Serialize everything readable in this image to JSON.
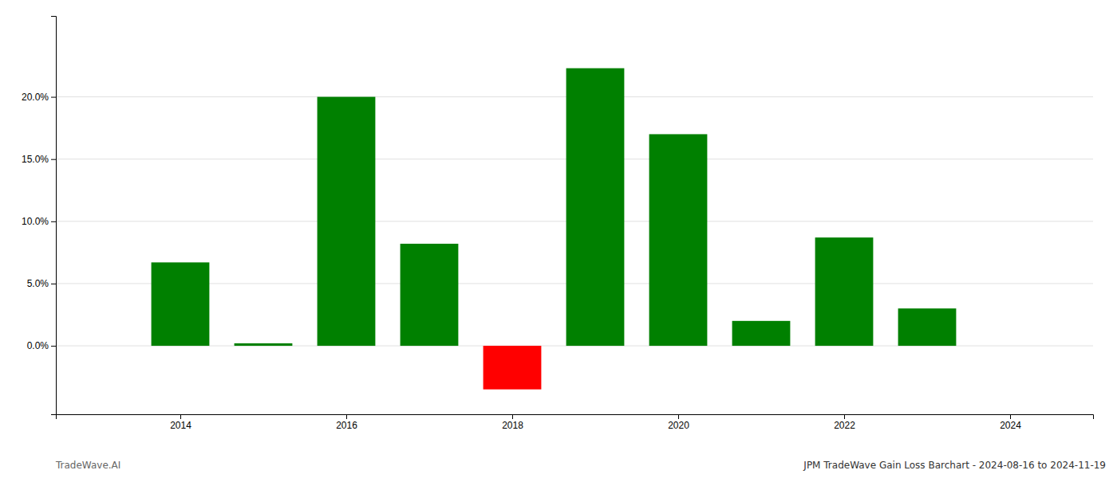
{
  "chart_data": {
    "type": "bar",
    "title": "JPM TradeWave Gain Loss Barchart - 2024-08-16 to 2024-11-19",
    "annotations": [
      "TradeWave.AI"
    ],
    "x": [
      2014,
      2015,
      2016,
      2017,
      2018,
      2019,
      2020,
      2021,
      2022,
      2023
    ],
    "values": [
      0.067,
      0.002,
      0.2,
      0.082,
      -0.035,
      0.223,
      0.17,
      0.02,
      0.087,
      0.03
    ],
    "colors": [
      "#008000",
      "#008000",
      "#008000",
      "#008000",
      "#ff0000",
      "#008000",
      "#008000",
      "#008000",
      "#008000",
      "#008000"
    ],
    "xlim": [
      2012.5,
      2025.0
    ],
    "xticks": [
      2014,
      2016,
      2018,
      2020,
      2022,
      2024
    ],
    "ylim": [
      -0.055,
      0.265
    ],
    "yticks": [
      {
        "value": 0.0,
        "label": "0.0%"
      },
      {
        "value": 0.05,
        "label": "5.0%"
      },
      {
        "value": 0.1,
        "label": "10.0%"
      },
      {
        "value": 0.15,
        "label": "15.0%"
      },
      {
        "value": 0.2,
        "label": "20.0%"
      }
    ],
    "grid": "y"
  }
}
